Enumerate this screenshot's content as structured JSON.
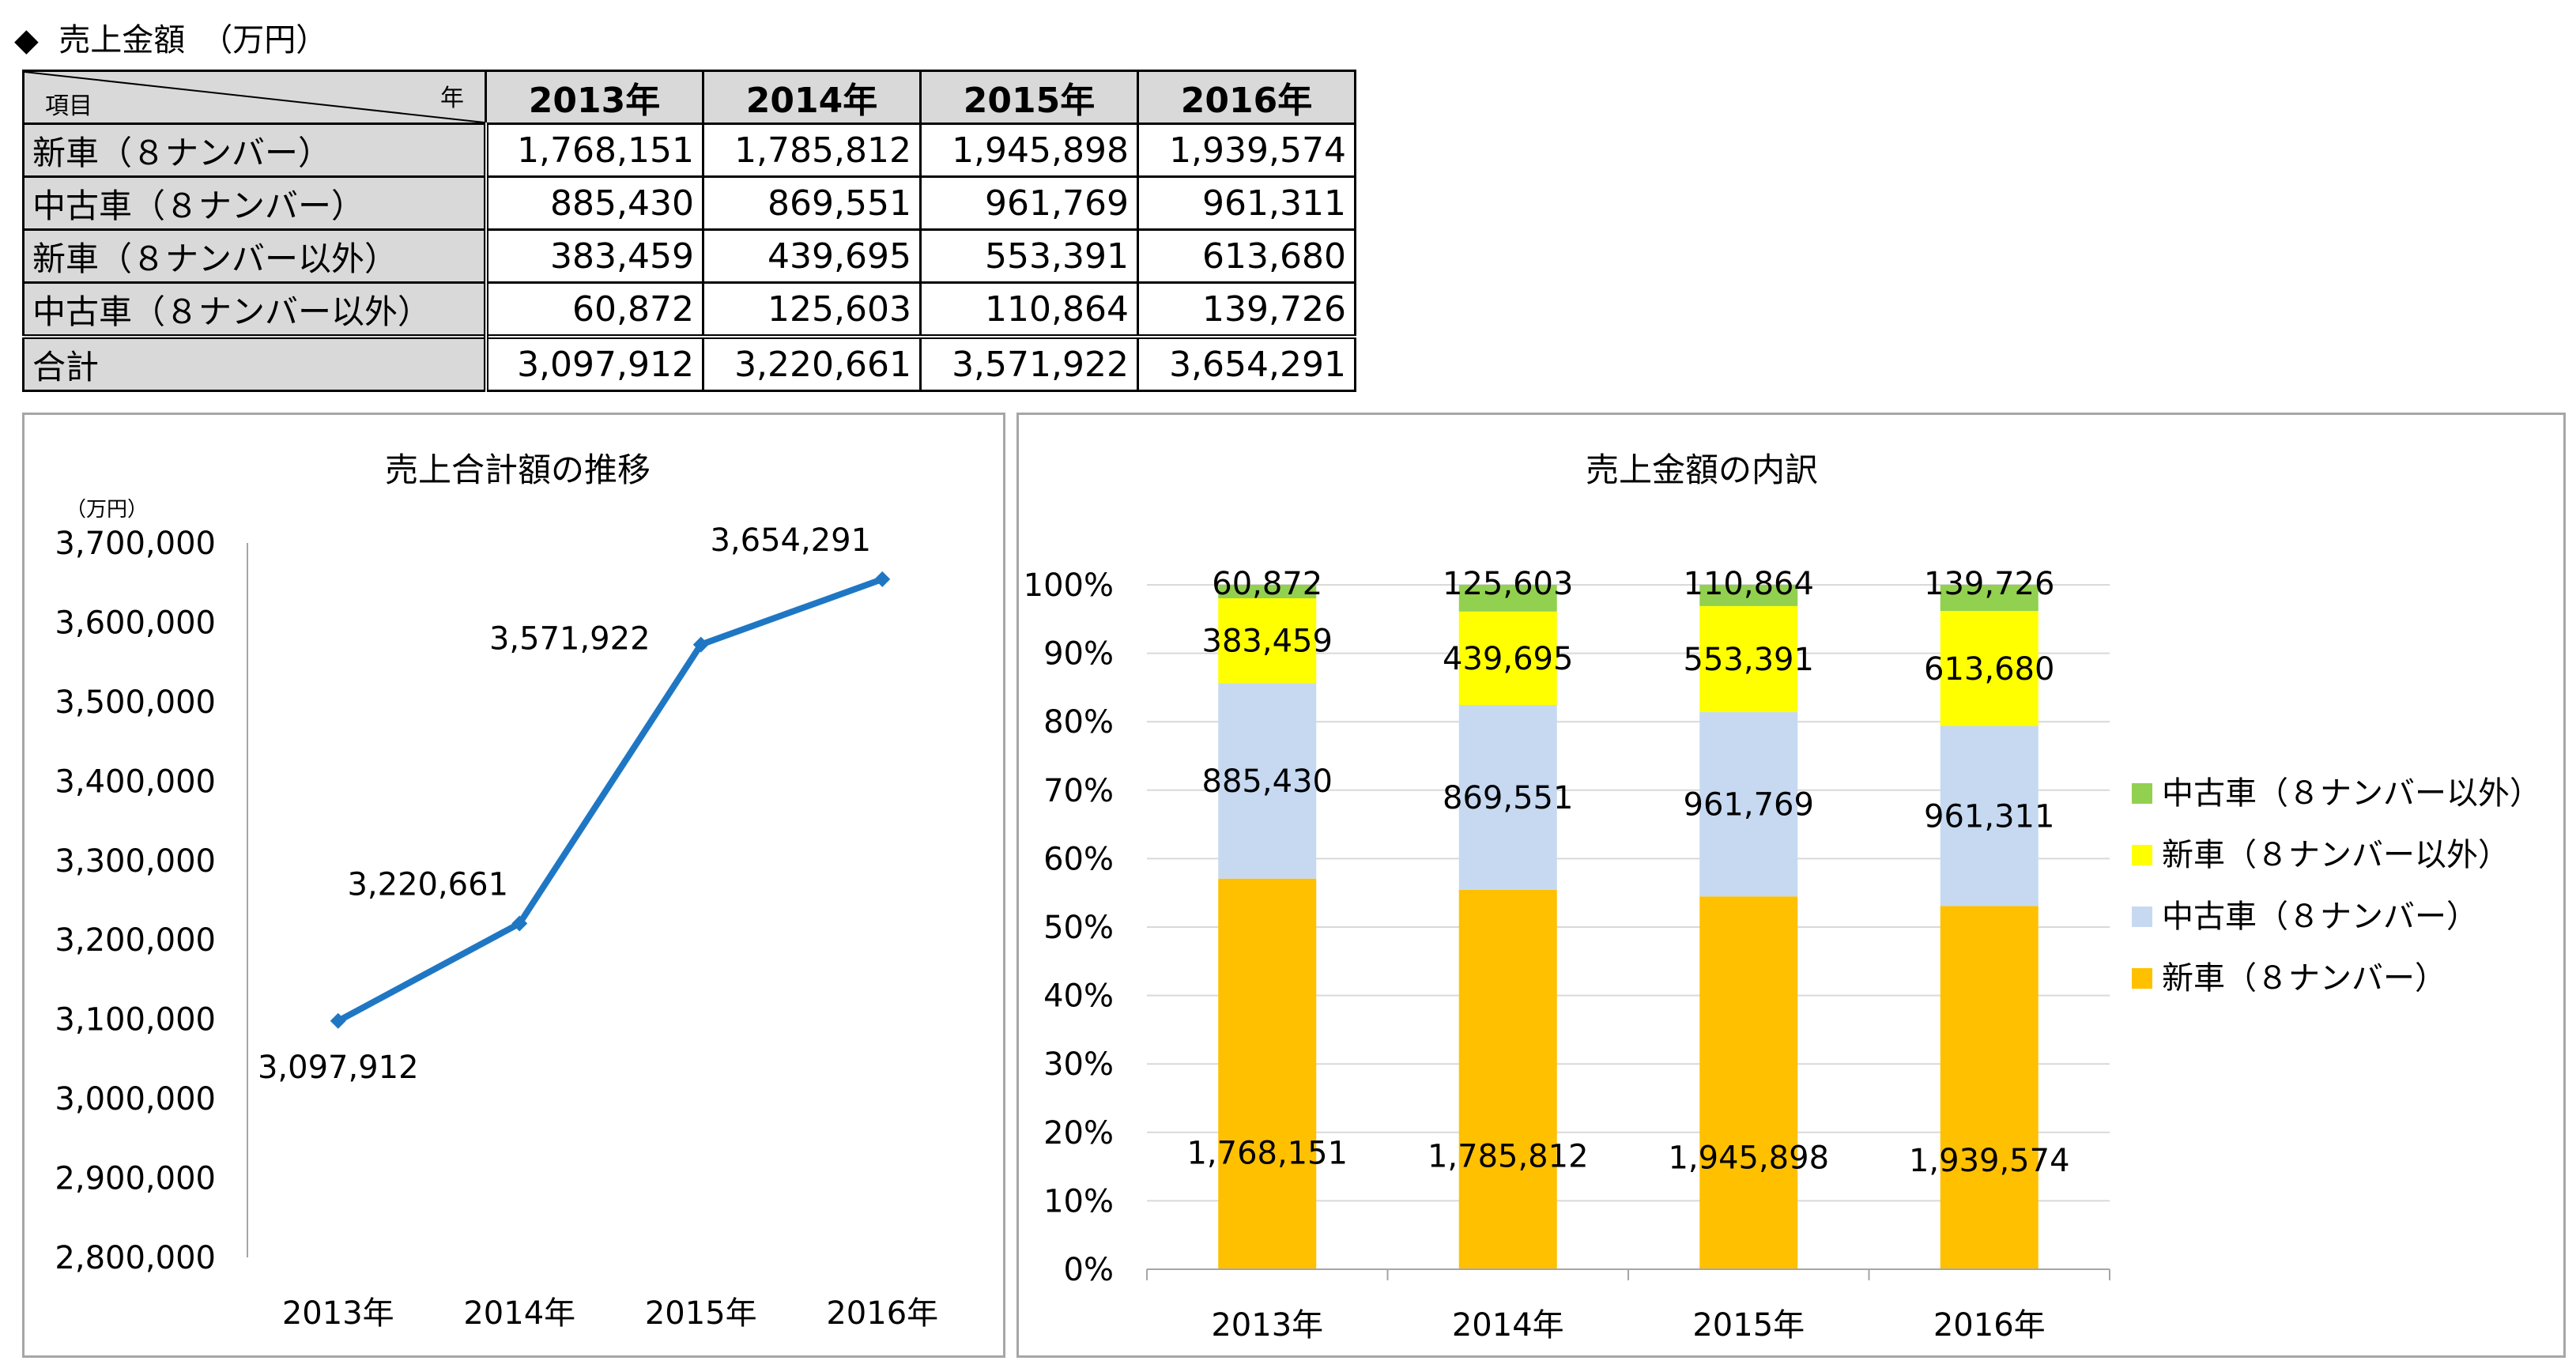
{
  "heading": {
    "bullet": "◆",
    "text": "売上金額",
    "unit": "（万円）"
  },
  "table": {
    "header_year": "年",
    "header_item": "項目",
    "years": [
      "2013年",
      "2014年",
      "2015年",
      "2016年"
    ],
    "rows": [
      {
        "label": "新車（８ナンバー）",
        "values": [
          "1,768,151",
          "1,785,812",
          "1,945,898",
          "1,939,574"
        ]
      },
      {
        "label": "中古車（８ナンバー）",
        "values": [
          "885,430",
          "869,551",
          "961,769",
          "961,311"
        ]
      },
      {
        "label": "新車（８ナンバー以外）",
        "values": [
          "383,459",
          "439,695",
          "553,391",
          "613,680"
        ]
      },
      {
        "label": "中古車（８ナンバー以外）",
        "values": [
          "60,872",
          "125,603",
          "110,864",
          "139,726"
        ]
      }
    ],
    "total": {
      "label": "合計",
      "values": [
        "3,097,912",
        "3,220,661",
        "3,571,922",
        "3,654,291"
      ]
    }
  },
  "colors": {
    "line": "#1f77c4",
    "new8": "#ffc000",
    "used8": "#c6d9f1",
    "newOther": "#ffff00",
    "usedOther": "#92d050",
    "grid": "#d9d9d9",
    "axis": "#a6a6a6",
    "border": "#a6a6a6"
  },
  "chart_data": [
    {
      "type": "line",
      "title": "売上合計額の推移",
      "unit_label": "（万円）",
      "categories": [
        "2013年",
        "2014年",
        "2015年",
        "2016年"
      ],
      "values": [
        3097912,
        3220661,
        3571922,
        3654291
      ],
      "value_labels": [
        "3,097,912",
        "3,220,661",
        "3,571,922",
        "3,654,291"
      ],
      "ylim": [
        2800000,
        3700000
      ],
      "ytick_labels": [
        "2,800,000",
        "2,900,000",
        "3,000,000",
        "3,100,000",
        "3,200,000",
        "3,300,000",
        "3,400,000",
        "3,500,000",
        "3,600,000",
        "3,700,000"
      ],
      "grid": false
    },
    {
      "type": "bar",
      "stacked": "percent",
      "title": "売上金額の内訳",
      "categories": [
        "2013年",
        "2014年",
        "2015年",
        "2016年"
      ],
      "ytick_labels": [
        "0%",
        "10%",
        "20%",
        "30%",
        "40%",
        "50%",
        "60%",
        "70%",
        "80%",
        "90%",
        "100%"
      ],
      "legend_position": "right",
      "series": [
        {
          "name": "新車（８ナンバー）",
          "color": "#ffc000",
          "values": [
            1768151,
            1785812,
            1945898,
            1939574
          ],
          "labels": [
            "1,768,151",
            "1,785,812",
            "1,945,898",
            "1,939,574"
          ]
        },
        {
          "name": "中古車（８ナンバー）",
          "color": "#c6d9f1",
          "values": [
            885430,
            869551,
            961769,
            961311
          ],
          "labels": [
            "885,430",
            "869,551",
            "961,769",
            "961,311"
          ]
        },
        {
          "name": "新車（８ナンバー以外）",
          "color": "#ffff00",
          "values": [
            383459,
            439695,
            553391,
            613680
          ],
          "labels": [
            "383,459",
            "439,695",
            "553,391",
            "613,680"
          ]
        },
        {
          "name": "中古車（８ナンバー以外）",
          "color": "#92d050",
          "values": [
            60872,
            125603,
            110864,
            139726
          ],
          "labels": [
            "60,872",
            "125,603",
            "110,864",
            "139,726"
          ]
        }
      ]
    }
  ]
}
